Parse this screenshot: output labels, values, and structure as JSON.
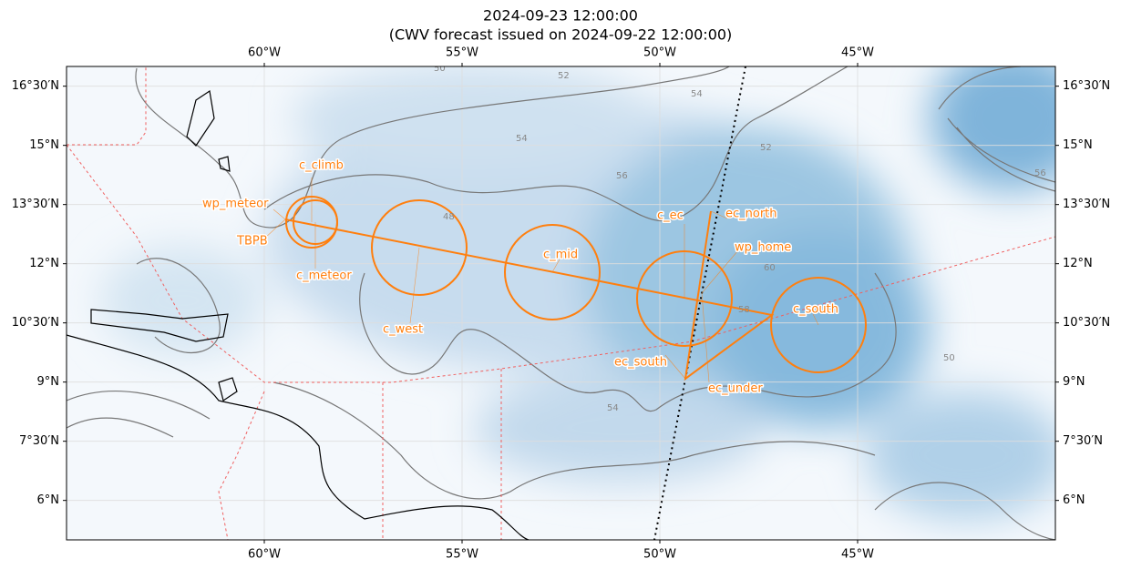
{
  "map_data": {
    "title": "2024-09-23 12:00:00",
    "subtitle": "(CWV forecast issued on 2024-09-22 12:00:00)",
    "xlim": [
      -65,
      -40
    ],
    "ylim": [
      5,
      17
    ],
    "xticks": [
      {
        "value": -60,
        "label": "60°W"
      },
      {
        "value": -55,
        "label": "55°W"
      },
      {
        "value": -50,
        "label": "50°W"
      },
      {
        "value": -45,
        "label": "45°W"
      }
    ],
    "yticks": [
      {
        "value": 6,
        "label": "6°N"
      },
      {
        "value": 7.5,
        "label": "7°30′N"
      },
      {
        "value": 9,
        "label": "9°N"
      },
      {
        "value": 10.5,
        "label": "10°30′N"
      },
      {
        "value": 12,
        "label": "12°N"
      },
      {
        "value": 13.5,
        "label": "13°30′N"
      },
      {
        "value": 15,
        "label": "15°N"
      },
      {
        "value": 16.5,
        "label": "16°30′N"
      }
    ],
    "grid": true,
    "waypoints": [
      "c_climb",
      "wp_meteor",
      "TBPB",
      "c_meteor",
      "c_west",
      "c_mid",
      "c_ec",
      "ec_north",
      "wp_home",
      "c_south",
      "ec_south",
      "ec_under"
    ],
    "contour_labels": [
      "50",
      "52",
      "54",
      "54",
      "56",
      "48",
      "52",
      "60",
      "58",
      "50",
      "56",
      "54"
    ]
  }
}
